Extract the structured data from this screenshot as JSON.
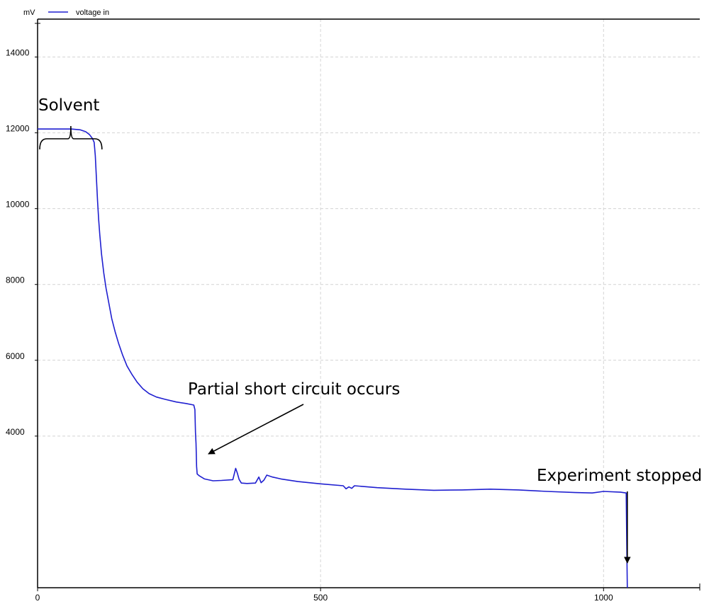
{
  "chart_data": {
    "type": "line",
    "ylabel": "mV",
    "xlim": [
      0,
      1170
    ],
    "ylim": [
      0,
      15000
    ],
    "x_ticks": [
      0,
      500,
      1000
    ],
    "y_ticks": [
      4000,
      6000,
      8000,
      10000,
      12000,
      14000
    ],
    "grid": true,
    "legend_position": "top-left",
    "series": [
      {
        "name": "voltage in",
        "color": "#1f1fd0",
        "points": [
          [
            0,
            12100
          ],
          [
            40,
            12100
          ],
          [
            60,
            12100
          ],
          [
            75,
            12080
          ],
          [
            85,
            12030
          ],
          [
            92,
            11950
          ],
          [
            97,
            11850
          ],
          [
            100,
            11750
          ],
          [
            102,
            11400
          ],
          [
            104,
            10800
          ],
          [
            106,
            10200
          ],
          [
            108,
            9700
          ],
          [
            110,
            9300
          ],
          [
            113,
            8800
          ],
          [
            117,
            8300
          ],
          [
            121,
            7900
          ],
          [
            126,
            7500
          ],
          [
            131,
            7100
          ],
          [
            137,
            6750
          ],
          [
            143,
            6450
          ],
          [
            150,
            6150
          ],
          [
            158,
            5850
          ],
          [
            167,
            5620
          ],
          [
            176,
            5420
          ],
          [
            186,
            5250
          ],
          [
            197,
            5120
          ],
          [
            210,
            5030
          ],
          [
            225,
            4970
          ],
          [
            245,
            4900
          ],
          [
            262,
            4860
          ],
          [
            276,
            4820
          ],
          [
            278,
            4700
          ],
          [
            279,
            4100
          ],
          [
            280,
            3800
          ],
          [
            281,
            3200
          ],
          [
            282,
            3000
          ],
          [
            286,
            2950
          ],
          [
            295,
            2870
          ],
          [
            310,
            2820
          ],
          [
            325,
            2830
          ],
          [
            345,
            2850
          ],
          [
            350,
            3150
          ],
          [
            353,
            3020
          ],
          [
            356,
            2860
          ],
          [
            360,
            2760
          ],
          [
            370,
            2750
          ],
          [
            385,
            2760
          ],
          [
            391,
            2920
          ],
          [
            395,
            2770
          ],
          [
            400,
            2840
          ],
          [
            405,
            2970
          ],
          [
            415,
            2920
          ],
          [
            430,
            2870
          ],
          [
            460,
            2800
          ],
          [
            500,
            2740
          ],
          [
            540,
            2690
          ],
          [
            545,
            2610
          ],
          [
            550,
            2660
          ],
          [
            555,
            2620
          ],
          [
            560,
            2690
          ],
          [
            600,
            2640
          ],
          [
            650,
            2600
          ],
          [
            700,
            2570
          ],
          [
            750,
            2580
          ],
          [
            800,
            2600
          ],
          [
            850,
            2580
          ],
          [
            900,
            2540
          ],
          [
            950,
            2510
          ],
          [
            980,
            2500
          ],
          [
            1000,
            2540
          ],
          [
            1030,
            2520
          ],
          [
            1040,
            2500
          ],
          [
            1041,
            1200
          ],
          [
            1042,
            0
          ]
        ]
      }
    ],
    "annotations": [
      {
        "text": "Solvent",
        "type": "brace",
        "x_range": [
          0,
          115
        ]
      },
      {
        "text": "Partial short circuit occurs",
        "type": "arrow",
        "target_x": 285,
        "target_y": 4770
      },
      {
        "text": "Experiment stopped",
        "type": "arrow",
        "target_x": 1042,
        "target_y": 2520
      }
    ]
  }
}
